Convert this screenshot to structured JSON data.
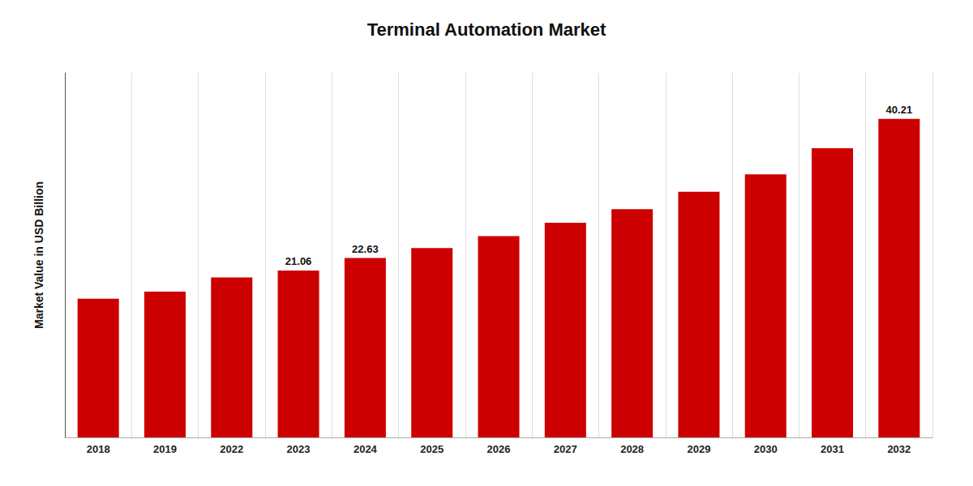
{
  "chart_data": {
    "type": "bar",
    "title": "Terminal Automation Market",
    "ylabel": "Market Value in USD Billion",
    "categories": [
      "2018",
      "2019",
      "2022",
      "2023",
      "2024",
      "2025",
      "2026",
      "2027",
      "2028",
      "2029",
      "2030",
      "2031",
      "2032"
    ],
    "values": [
      17.5,
      18.4,
      20.2,
      21.06,
      22.63,
      23.9,
      25.4,
      27.1,
      28.8,
      31.0,
      33.2,
      36.5,
      40.21
    ],
    "color": "#cc0000",
    "ylim": [
      0,
      46
    ],
    "tick_labels": "x",
    "grid": true,
    "annotations": [
      {
        "text": "21.06",
        "category": "2023"
      },
      {
        "text": "22.63",
        "category": "2024"
      },
      {
        "text": "40.21",
        "category": "2032"
      }
    ]
  }
}
